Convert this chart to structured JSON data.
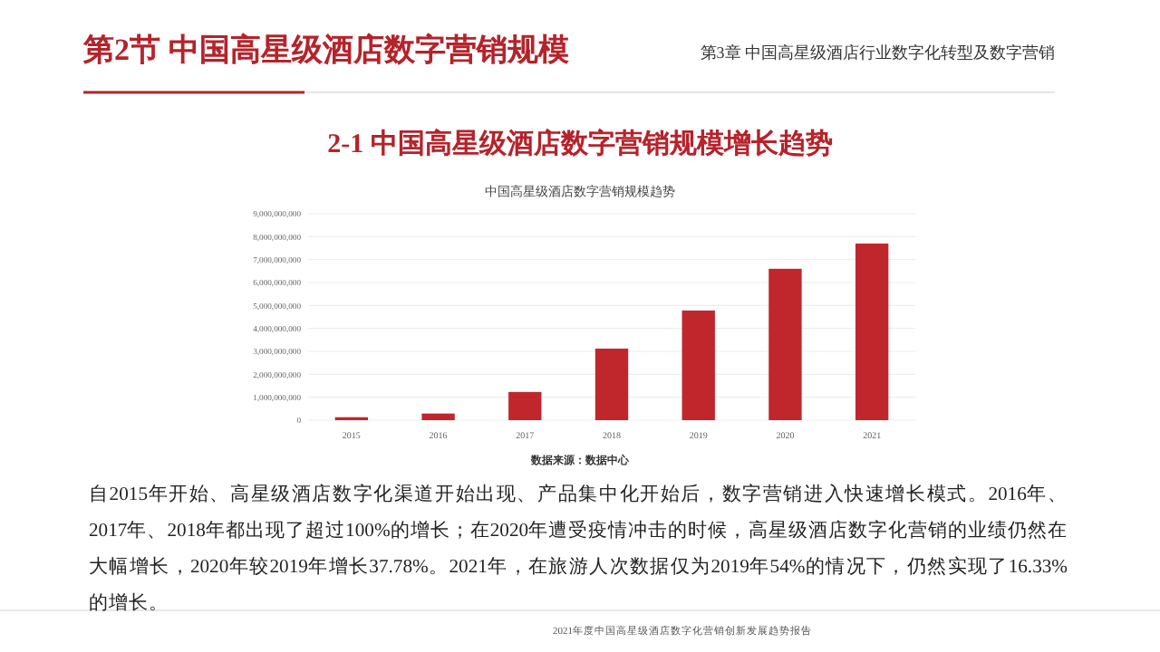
{
  "chart_data": {
    "type": "bar",
    "title": "中国高星级酒店数字营销规模趋势",
    "categories": [
      "2015",
      "2016",
      "2017",
      "2018",
      "2019",
      "2020",
      "2021"
    ],
    "values": [
      130000000,
      290000000,
      1230000000,
      3120000000,
      4780000000,
      6600000000,
      7700000000
    ],
    "color": "#c0272d",
    "ylim": [
      0,
      9000000000
    ],
    "yticks": [
      {
        "value": 0,
        "label": "0"
      },
      {
        "value": 1000000000,
        "label": "1,000,000,000"
      },
      {
        "value": 2000000000,
        "label": "2,000,000,000"
      },
      {
        "value": 3000000000,
        "label": "3,000,000,000"
      },
      {
        "value": 4000000000,
        "label": "4,000,000,000"
      },
      {
        "value": 5000000000,
        "label": "5,000,000,000"
      },
      {
        "value": 6000000000,
        "label": "6,000,000,000"
      },
      {
        "value": 7000000000,
        "label": "7,000,000,000"
      },
      {
        "value": 8000000000,
        "label": "8,000,000,000"
      },
      {
        "value": 9000000000,
        "label": "9,000,000,000"
      }
    ],
    "grid": "y",
    "annotations": [
      "第2节 中国高星级酒店数字营销规模",
      "第3章 中国高星级酒店行业数字化转型及数字营销",
      "2-1 中国高星级酒店数字营销规模增长趋势",
      "数据来源：数据中心",
      "自2015年开始、高星级酒店数字化渠道开始出现、产品集中化开始后，数字营销进入快速增长模式。2016年、2017年、2018年都出现了超过100%的增长；在2020年遭受疫情冲击的时候，高星级酒店数字化营销的业绩仍然在大幅增长，2020年较2019年增长37.78%。2021年，在旅游人次数据仅为2019年54%的情况下，仍然实现了16.33%的增长。",
      "2021年度中国高星级酒店数字化营销创新发展趋势报告"
    ]
  }
}
